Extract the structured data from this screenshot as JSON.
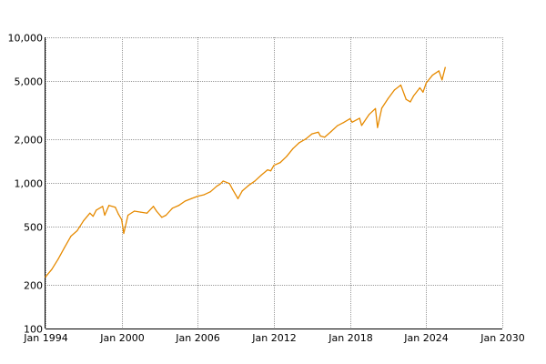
{
  "chart_data": {
    "type": "line",
    "title": "",
    "xlabel": "",
    "ylabel": "",
    "y_scale": "log",
    "grid": true,
    "legend": "none",
    "xlim": [
      "1994-01",
      "2030-01"
    ],
    "ylim": [
      100,
      10000
    ],
    "x_ticks": [
      {
        "value": "1994-01",
        "label": "Jan 1994"
      },
      {
        "value": "2000-01",
        "label": "Jan 2000"
      },
      {
        "value": "2006-01",
        "label": "Jan 2006"
      },
      {
        "value": "2012-01",
        "label": "Jan 2012"
      },
      {
        "value": "2018-01",
        "label": "Jan 2018"
      },
      {
        "value": "2024-01",
        "label": "Jan 2024"
      },
      {
        "value": "2030-01",
        "label": "Jan 2030"
      }
    ],
    "y_ticks": [
      {
        "value": 10000,
        "label": "10,000"
      },
      {
        "value": 5000,
        "label": "5,000"
      },
      {
        "value": 2000,
        "label": "2,000"
      },
      {
        "value": 1000,
        "label": "1,000"
      },
      {
        "value": 500,
        "label": "500"
      },
      {
        "value": 200,
        "label": "200"
      },
      {
        "value": 100,
        "label": "100"
      }
    ],
    "series": [
      {
        "color": "#E68A00",
        "points": [
          [
            "1994-01",
            226
          ],
          [
            "1994-07",
            255
          ],
          [
            "1995-01",
            300
          ],
          [
            "1995-07",
            360
          ],
          [
            "1996-01",
            430
          ],
          [
            "1996-07",
            470
          ],
          [
            "1997-01",
            550
          ],
          [
            "1997-07",
            620
          ],
          [
            "1997-10",
            590
          ],
          [
            "1998-01",
            650
          ],
          [
            "1998-07",
            690
          ],
          [
            "1998-09",
            600
          ],
          [
            "1999-01",
            700
          ],
          [
            "1999-07",
            680
          ],
          [
            "1999-10",
            610
          ],
          [
            "2000-01",
            560
          ],
          [
            "2000-03",
            450
          ],
          [
            "2000-07",
            600
          ],
          [
            "2001-01",
            640
          ],
          [
            "2001-07",
            630
          ],
          [
            "2002-01",
            620
          ],
          [
            "2002-07",
            690
          ],
          [
            "2002-10",
            640
          ],
          [
            "2003-03",
            580
          ],
          [
            "2003-07",
            600
          ],
          [
            "2004-01",
            670
          ],
          [
            "2004-07",
            700
          ],
          [
            "2005-01",
            750
          ],
          [
            "2005-07",
            780
          ],
          [
            "2006-01",
            810
          ],
          [
            "2006-07",
            830
          ],
          [
            "2007-01",
            870
          ],
          [
            "2007-07",
            950
          ],
          [
            "2007-10",
            980
          ],
          [
            "2008-01",
            1030
          ],
          [
            "2008-07",
            990
          ],
          [
            "2008-10",
            900
          ],
          [
            "2009-03",
            780
          ],
          [
            "2009-07",
            880
          ],
          [
            "2010-01",
            960
          ],
          [
            "2010-07",
            1030
          ],
          [
            "2011-01",
            1130
          ],
          [
            "2011-07",
            1230
          ],
          [
            "2011-10",
            1210
          ],
          [
            "2012-01",
            1320
          ],
          [
            "2012-07",
            1380
          ],
          [
            "2013-01",
            1520
          ],
          [
            "2013-07",
            1720
          ],
          [
            "2014-01",
            1890
          ],
          [
            "2014-07",
            2000
          ],
          [
            "2015-01",
            2170
          ],
          [
            "2015-07",
            2230
          ],
          [
            "2015-09",
            2100
          ],
          [
            "2016-01",
            2060
          ],
          [
            "2016-07",
            2250
          ],
          [
            "2017-01",
            2470
          ],
          [
            "2017-07",
            2600
          ],
          [
            "2018-01",
            2760
          ],
          [
            "2018-03",
            2610
          ],
          [
            "2018-10",
            2780
          ],
          [
            "2018-12",
            2480
          ],
          [
            "2019-07",
            2950
          ],
          [
            "2020-01",
            3240
          ],
          [
            "2020-03",
            2400
          ],
          [
            "2020-07",
            3260
          ],
          [
            "2021-01",
            3800
          ],
          [
            "2021-07",
            4350
          ],
          [
            "2022-01",
            4700
          ],
          [
            "2022-06",
            3750
          ],
          [
            "2022-10",
            3600
          ],
          [
            "2023-01",
            3950
          ],
          [
            "2023-07",
            4500
          ],
          [
            "2023-10",
            4200
          ],
          [
            "2024-01",
            4850
          ],
          [
            "2024-07",
            5500
          ],
          [
            "2025-01",
            5880
          ],
          [
            "2025-04",
            5100
          ],
          [
            "2025-07",
            6200
          ]
        ]
      }
    ]
  }
}
